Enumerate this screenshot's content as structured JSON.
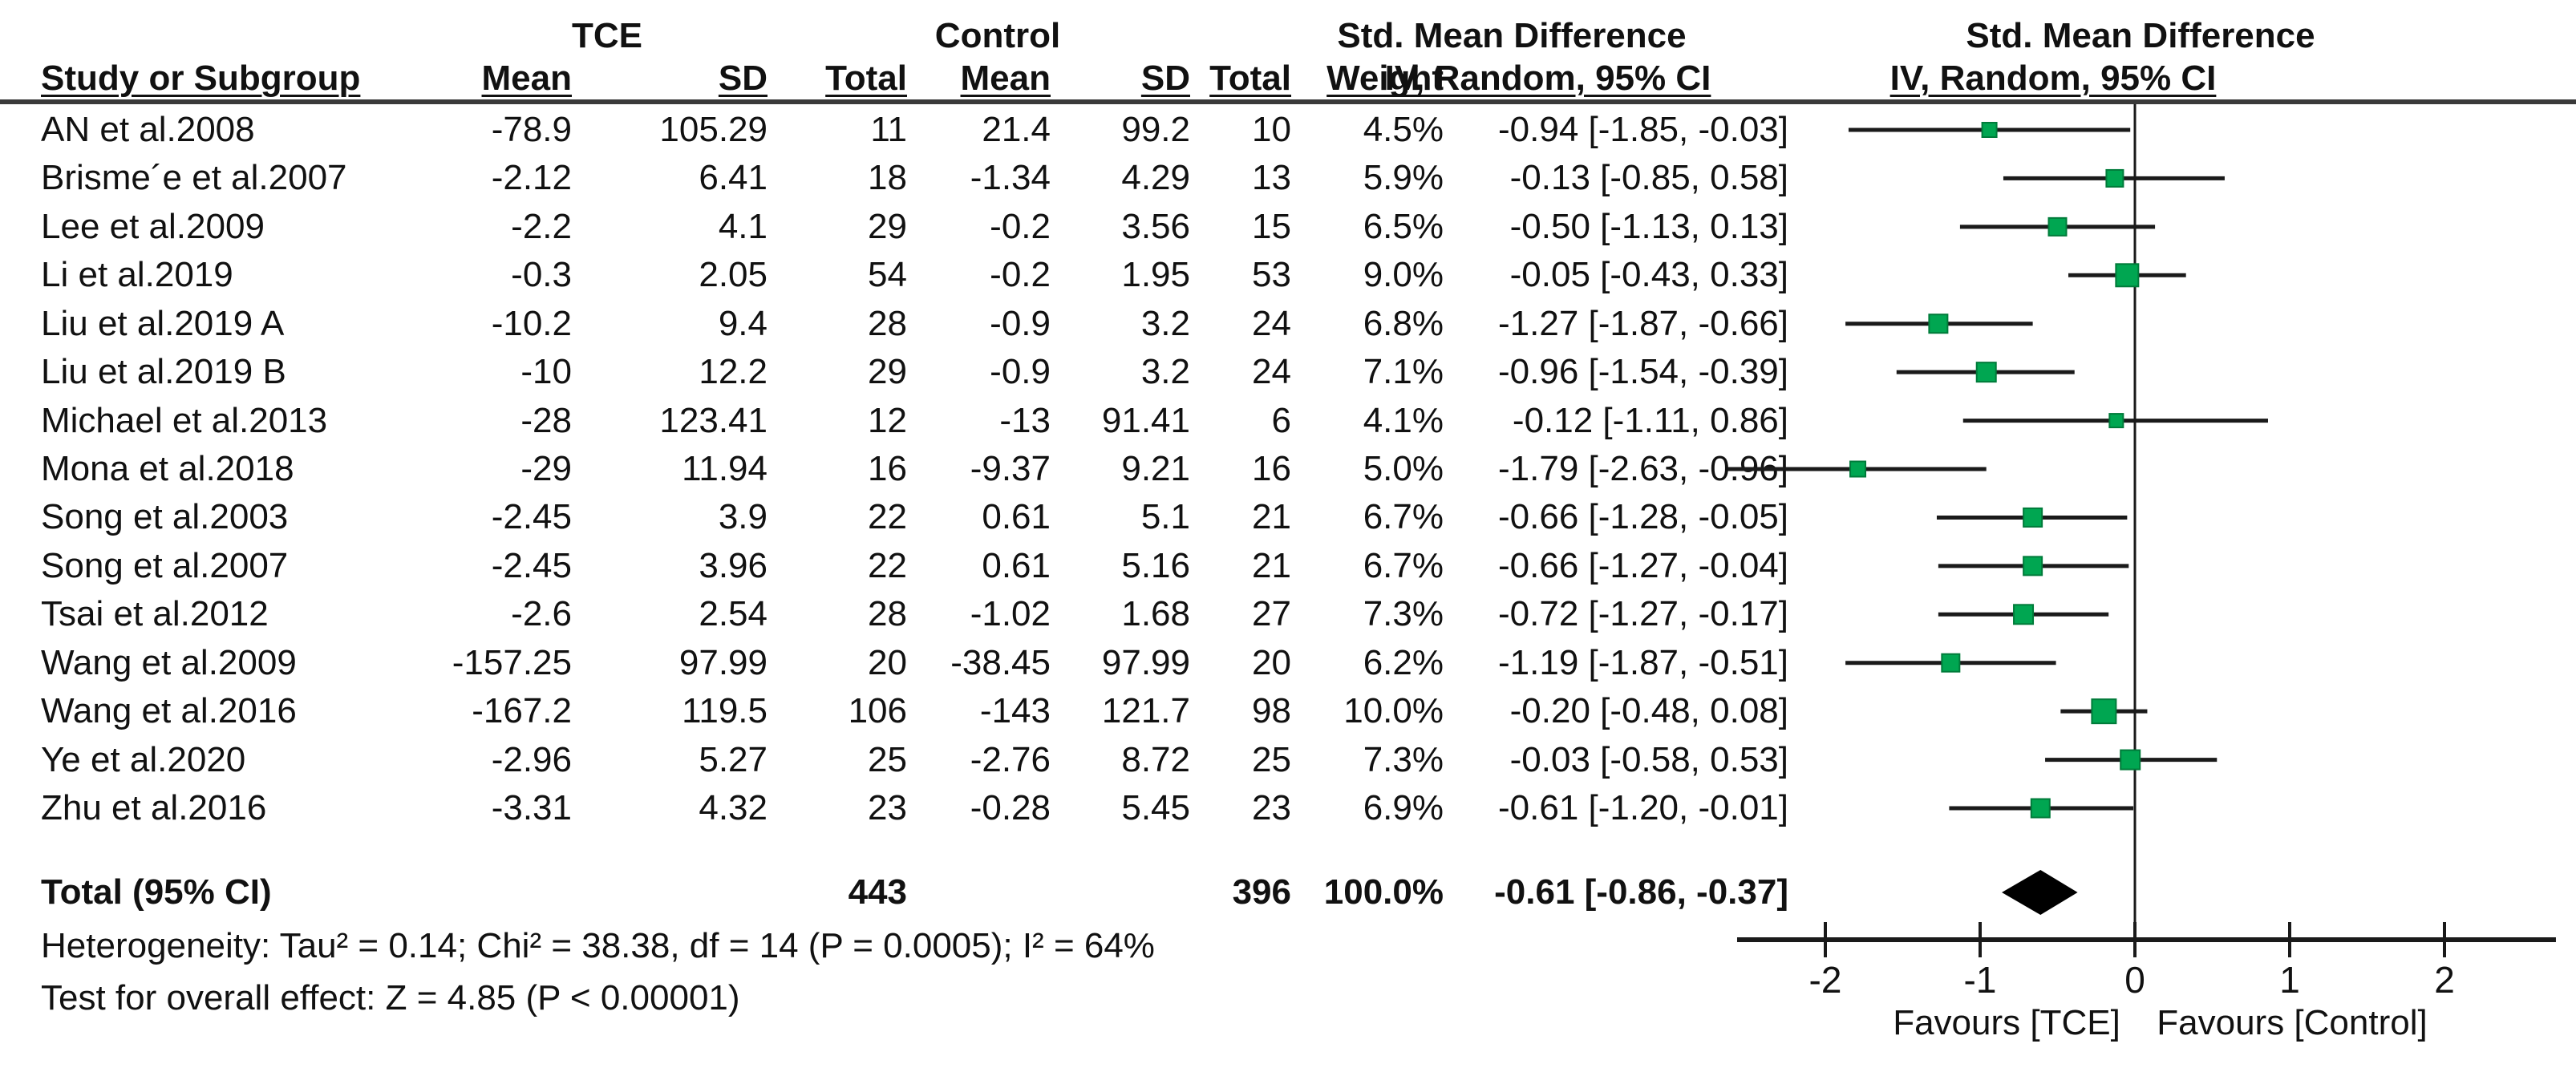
{
  "header": {
    "study_col": "Study or Subgroup",
    "group_tce": "TCE",
    "group_control": "Control",
    "mean": "Mean",
    "sd": "SD",
    "total": "Total",
    "weight": "Weight",
    "smd_title": "Std. Mean Difference",
    "method_label": "IV, Random, 95% CI"
  },
  "table": {
    "rows": [
      {
        "study": "AN et al.2008",
        "mean1": "-78.9",
        "sd1": "105.29",
        "total1": "11",
        "mean2": "21.4",
        "sd2": "99.2",
        "total2": "10",
        "weight": "4.5%",
        "ci_text": "-0.94 [-1.85, -0.03]"
      },
      {
        "study": "Brisme´e et al.2007",
        "mean1": "-2.12",
        "sd1": "6.41",
        "total1": "18",
        "mean2": "-1.34",
        "sd2": "4.29",
        "total2": "13",
        "weight": "5.9%",
        "ci_text": "-0.13 [-0.85, 0.58]"
      },
      {
        "study": "Lee et al.2009",
        "mean1": "-2.2",
        "sd1": "4.1",
        "total1": "29",
        "mean2": "-0.2",
        "sd2": "3.56",
        "total2": "15",
        "weight": "6.5%",
        "ci_text": "-0.50 [-1.13, 0.13]"
      },
      {
        "study": "Li et al.2019",
        "mean1": "-0.3",
        "sd1": "2.05",
        "total1": "54",
        "mean2": "-0.2",
        "sd2": "1.95",
        "total2": "53",
        "weight": "9.0%",
        "ci_text": "-0.05 [-0.43, 0.33]"
      },
      {
        "study": "Liu et al.2019 A",
        "mean1": "-10.2",
        "sd1": "9.4",
        "total1": "28",
        "mean2": "-0.9",
        "sd2": "3.2",
        "total2": "24",
        "weight": "6.8%",
        "ci_text": "-1.27 [-1.87, -0.66]"
      },
      {
        "study": "Liu et al.2019 B",
        "mean1": "-10",
        "sd1": "12.2",
        "total1": "29",
        "mean2": "-0.9",
        "sd2": "3.2",
        "total2": "24",
        "weight": "7.1%",
        "ci_text": "-0.96 [-1.54, -0.39]"
      },
      {
        "study": "Michael et al.2013",
        "mean1": "-28",
        "sd1": "123.41",
        "total1": "12",
        "mean2": "-13",
        "sd2": "91.41",
        "total2": "6",
        "weight": "4.1%",
        "ci_text": "-0.12 [-1.11, 0.86]"
      },
      {
        "study": "Mona et al.2018",
        "mean1": "-29",
        "sd1": "11.94",
        "total1": "16",
        "mean2": "-9.37",
        "sd2": "9.21",
        "total2": "16",
        "weight": "5.0%",
        "ci_text": "-1.79 [-2.63, -0.96]"
      },
      {
        "study": "Song et al.2003",
        "mean1": "-2.45",
        "sd1": "3.9",
        "total1": "22",
        "mean2": "0.61",
        "sd2": "5.1",
        "total2": "21",
        "weight": "6.7%",
        "ci_text": "-0.66 [-1.28, -0.05]"
      },
      {
        "study": "Song et al.2007",
        "mean1": "-2.45",
        "sd1": "3.96",
        "total1": "22",
        "mean2": "0.61",
        "sd2": "5.16",
        "total2": "21",
        "weight": "6.7%",
        "ci_text": "-0.66 [-1.27, -0.04]"
      },
      {
        "study": "Tsai et al.2012",
        "mean1": "-2.6",
        "sd1": "2.54",
        "total1": "28",
        "mean2": "-1.02",
        "sd2": "1.68",
        "total2": "27",
        "weight": "7.3%",
        "ci_text": "-0.72 [-1.27, -0.17]"
      },
      {
        "study": "Wang et al.2009",
        "mean1": "-157.25",
        "sd1": "97.99",
        "total1": "20",
        "mean2": "-38.45",
        "sd2": "97.99",
        "total2": "20",
        "weight": "6.2%",
        "ci_text": "-1.19 [-1.87, -0.51]"
      },
      {
        "study": "Wang et al.2016",
        "mean1": "-167.2",
        "sd1": "119.5",
        "total1": "106",
        "mean2": "-143",
        "sd2": "121.7",
        "total2": "98",
        "weight": "10.0%",
        "ci_text": "-0.20 [-0.48, 0.08]"
      },
      {
        "study": "Ye et al.2020",
        "mean1": "-2.96",
        "sd1": "5.27",
        "total1": "25",
        "mean2": "-2.76",
        "sd2": "8.72",
        "total2": "25",
        "weight": "7.3%",
        "ci_text": "-0.03 [-0.58, 0.53]"
      },
      {
        "study": "Zhu et al.2016",
        "mean1": "-3.31",
        "sd1": "4.32",
        "total1": "23",
        "mean2": "-0.28",
        "sd2": "5.45",
        "total2": "23",
        "weight": "6.9%",
        "ci_text": "-0.61 [-1.20, -0.01]"
      }
    ],
    "total_row": {
      "label": "Total (95% CI)",
      "total1": "443",
      "total2": "396",
      "weight": "100.0%",
      "ci_text": "-0.61 [-0.86, -0.37]"
    }
  },
  "footer": {
    "heterogeneity": "Heterogeneity: Tau² = 0.14; Chi² = 38.38, df = 14 (P = 0.0005); I² = 64%",
    "overall_effect": "Test for overall effect: Z = 4.85 (P < 0.00001)"
  },
  "chart_data": {
    "type": "forest",
    "title": "Std. Mean Difference",
    "method": "IV, Random, 95% CI",
    "x_ticks": [
      "-2",
      "-1",
      "0",
      "1",
      "2"
    ],
    "x_tick_values": [
      -2,
      -1,
      0,
      1,
      2
    ],
    "x_range": [
      -2.57,
      2.72
    ],
    "favours_left": "Favours [TCE]",
    "favours_right": "Favours [Control]",
    "marker_color": "#00A651",
    "marker_edge_color": "#007B3A",
    "line_color": "#1a1a1a",
    "studies": [
      {
        "name": "AN et al.2008",
        "smd": -0.94,
        "ci": [
          -1.85,
          -0.03
        ],
        "weight_pct": 4.5
      },
      {
        "name": "Brisme´e et al.2007",
        "smd": -0.13,
        "ci": [
          -0.85,
          0.58
        ],
        "weight_pct": 5.9
      },
      {
        "name": "Lee et al.2009",
        "smd": -0.5,
        "ci": [
          -1.13,
          0.13
        ],
        "weight_pct": 6.5
      },
      {
        "name": "Li et al.2019",
        "smd": -0.05,
        "ci": [
          -0.43,
          0.33
        ],
        "weight_pct": 9.0
      },
      {
        "name": "Liu et al.2019 A",
        "smd": -1.27,
        "ci": [
          -1.87,
          -0.66
        ],
        "weight_pct": 6.8
      },
      {
        "name": "Liu et al.2019 B",
        "smd": -0.96,
        "ci": [
          -1.54,
          -0.39
        ],
        "weight_pct": 7.1
      },
      {
        "name": "Michael et al.2013",
        "smd": -0.12,
        "ci": [
          -1.11,
          0.86
        ],
        "weight_pct": 4.1
      },
      {
        "name": "Mona et al.2018",
        "smd": -1.79,
        "ci": [
          -2.63,
          -0.96
        ],
        "weight_pct": 5.0
      },
      {
        "name": "Song et al.2003",
        "smd": -0.66,
        "ci": [
          -1.28,
          -0.05
        ],
        "weight_pct": 6.7
      },
      {
        "name": "Song et al.2007",
        "smd": -0.66,
        "ci": [
          -1.27,
          -0.04
        ],
        "weight_pct": 6.7
      },
      {
        "name": "Tsai et al.2012",
        "smd": -0.72,
        "ci": [
          -1.27,
          -0.17
        ],
        "weight_pct": 7.3
      },
      {
        "name": "Wang et al.2009",
        "smd": -1.19,
        "ci": [
          -1.87,
          -0.51
        ],
        "weight_pct": 6.2
      },
      {
        "name": "Wang et al.2016",
        "smd": -0.2,
        "ci": [
          -0.48,
          0.08
        ],
        "weight_pct": 10.0
      },
      {
        "name": "Ye et al.2020",
        "smd": -0.03,
        "ci": [
          -0.58,
          0.53
        ],
        "weight_pct": 7.3
      },
      {
        "name": "Zhu et al.2016",
        "smd": -0.61,
        "ci": [
          -1.2,
          -0.01
        ],
        "weight_pct": 6.9
      }
    ],
    "total": {
      "label": "Total (95% CI)",
      "smd": -0.61,
      "ci": [
        -0.86,
        -0.37
      ],
      "weight_pct": 100.0
    }
  }
}
